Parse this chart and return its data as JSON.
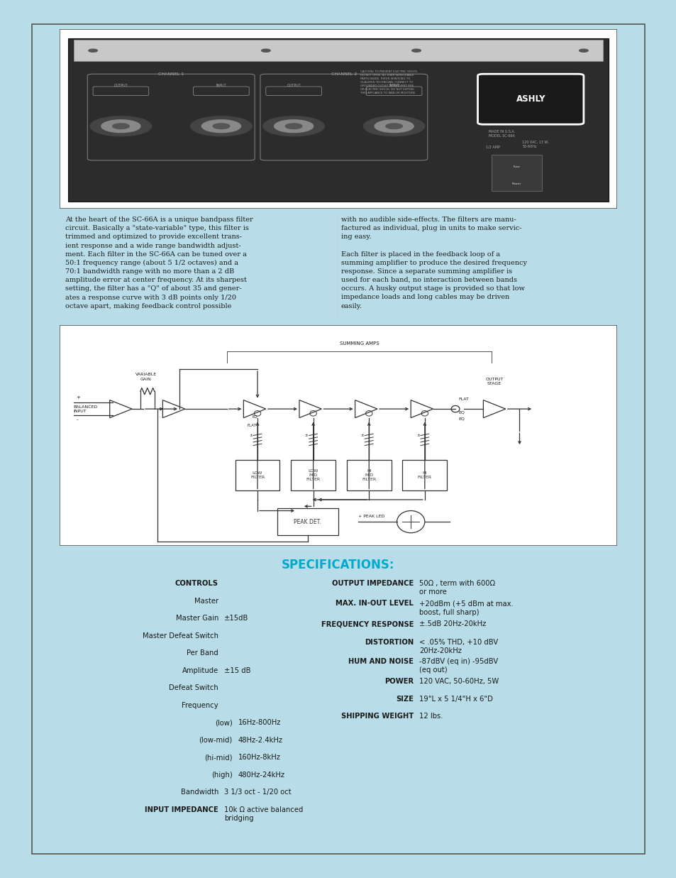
{
  "bg_color": "#b8dde8",
  "page_bg": "#ffffff",
  "title_color": "#00aacc",
  "text_color": "#1a1a1a",
  "specifications_title": "SPECIFICATIONS:",
  "left_col_text": "At the heart of the SC-66A is a unique bandpass filter\ncircuit. Basically a \"state-variable\" type, this filter is\ntrimmed and optimized to provide excellent trans-\nient response and a wide range bandwidth adjust-\nment. Each filter in the SC-66A can be tuned over a\n50:1 frequency range (about 5 1/2 octaves) and a\n70:1 bandwidth range with no more than a 2 dB\namplitude error at center frequency. At its sharpest\nsetting, the filter has a \"Q\" of about 35 and gener-\nates a response curve with 3 dB points only 1/20\noctave apart, making feedback control possible",
  "right_col_text": "with no audible side-effects. The filters are manu-\nfactured as individual, plug in units to make servic-\ning easy.\n\nEach filter is placed in the feedback loop of a\nsumming amplifier to produce the desired frequency\nresponse. Since a separate summing amplifier is\nused for each band, no interaction between bands\noccurs. A husky output stage is provided so that low\nimpedance loads and long cables may be driven\neasily.",
  "specs_left_labels": [
    "CONTROLS",
    "Master",
    "Master Gain",
    "Master Defeat Switch",
    "Per Band",
    "Amplitude",
    "Defeat Switch",
    "Frequency",
    "(low)",
    "(low-mid)",
    "(hi-mid)",
    "(high)",
    "Bandwidth",
    "INPUT IMPEDANCE"
  ],
  "specs_left_values": [
    "",
    "",
    "±15dB",
    "",
    "",
    "±15 dB",
    "",
    "",
    "16Hz-800Hz",
    "48Hz-2.4kHz",
    "160Hz-8kHz",
    "480Hz-24kHz",
    "3 1/3 oct - 1/20 oct",
    "10k Ω active balanced\nbridging"
  ],
  "specs_left_bold": [
    true,
    false,
    false,
    false,
    false,
    false,
    false,
    false,
    false,
    false,
    false,
    false,
    false,
    true
  ],
  "specs_right_labels": [
    "OUTPUT IMPEDANCE",
    "MAX. IN-OUT LEVEL",
    "FREQUENCY RESPONSE",
    "DISTORTION",
    "HUM AND NOISE",
    "POWER",
    "SIZE",
    "SHIPPING WEIGHT"
  ],
  "specs_right_values": [
    "50Ω , term with 600Ω\nor more",
    "+20dBm (+5 dBm at max.\nboost, full sharp)",
    "±.5dB 20Hz-20kHz",
    "< .05% THD, +10 dBV\n20Hz-20kHz",
    "-87dBV (eq in) -95dBV\n(eq out)",
    "120 VAC, 50-60Hz, 5W",
    "19\"L x 5 1/4\"H x 6\"D",
    "12 lbs."
  ],
  "specs_right_bold": [
    true,
    true,
    true,
    true,
    true,
    true,
    true,
    true
  ]
}
